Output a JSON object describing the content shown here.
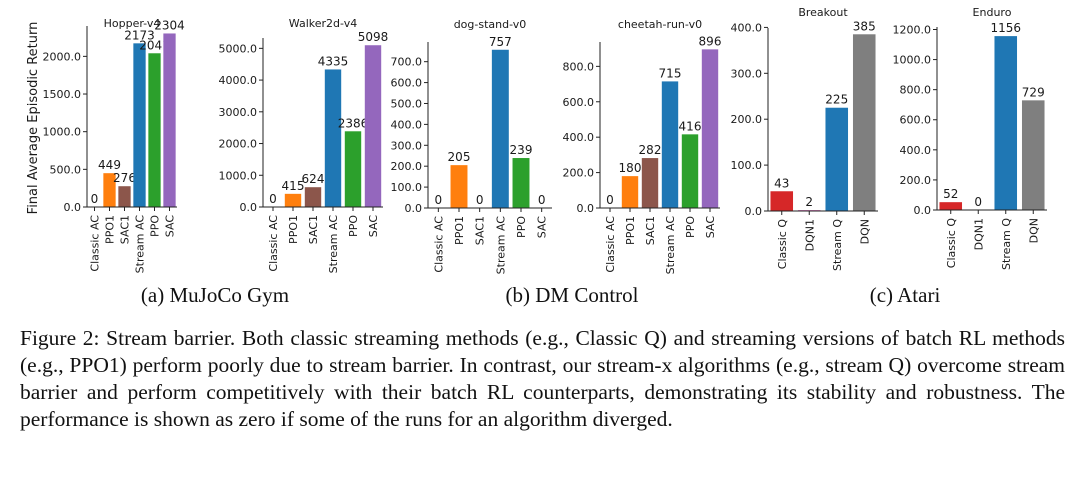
{
  "figure": {
    "ylabel": "Final Average Episodic Return",
    "panel_captions": [
      "(a) MuJoCo Gym",
      "(b) DM Control",
      "(c) Atari"
    ],
    "caption": "Figure 2: Stream barrier. Both classic streaming methods (e.g., Classic Q) and streaming versions of batch RL methods (e.g., PPO1) perform poorly due to stream barrier. In contrast, our stream-x algorithms (e.g., stream Q) overcome stream barrier and perform competitively with their batch RL counterparts, demonstrating its stability and robustness. The performance is shown as zero if some of the runs for an algorithm diverged."
  },
  "colors": {
    "Classic AC": "#1f77b4",
    "PPO1": "#ff7f0e",
    "SAC1": "#8c564b",
    "Stream AC": "#1f77b4",
    "PPO": "#2ca02c",
    "SAC": "#9467bd",
    "Classic Q": "#d62728",
    "DQN1": "#e377c2",
    "Stream Q": "#1f77b4",
    "DQN": "#7f7f7f"
  },
  "chart_data": [
    {
      "type": "bar",
      "title": "Hopper-v4",
      "categories": [
        "Classic AC",
        "PPO1",
        "SAC1",
        "Stream AC",
        "PPO",
        "SAC"
      ],
      "values": [
        0,
        449,
        276,
        2173,
        2041,
        2304
      ],
      "ylim": [
        0,
        2350
      ],
      "yticks": [
        0,
        500,
        1000,
        1500,
        2000
      ],
      "ylabel": "Final Average Episodic Return"
    },
    {
      "type": "bar",
      "title": "Walker2d-v4",
      "categories": [
        "Classic AC",
        "PPO1",
        "SAC1",
        "Stream AC",
        "PPO",
        "SAC"
      ],
      "values": [
        0,
        415,
        624,
        4335,
        2386,
        5098
      ],
      "ylim": [
        0,
        5200
      ],
      "yticks": [
        0,
        1000,
        2000,
        3000,
        4000,
        5000
      ]
    },
    {
      "type": "bar",
      "title": "dog-stand-v0",
      "categories": [
        "Classic AC",
        "PPO1",
        "SAC1",
        "Stream AC",
        "PPO",
        "SAC"
      ],
      "values": [
        0,
        205,
        0,
        757,
        239,
        0
      ],
      "ylim": [
        0,
        775
      ],
      "yticks": [
        0,
        100,
        200,
        300,
        400,
        500,
        600,
        700
      ]
    },
    {
      "type": "bar",
      "title": "cheetah-run-v0",
      "categories": [
        "Classic AC",
        "PPO1",
        "SAC1",
        "Stream AC",
        "PPO",
        "SAC"
      ],
      "values": [
        0,
        180,
        282,
        715,
        416,
        896
      ],
      "ylim": [
        0,
        915
      ],
      "yticks": [
        0,
        200,
        400,
        600,
        800
      ]
    },
    {
      "type": "bar",
      "title": "Breakout",
      "categories": [
        "Classic Q",
        "DQN1",
        "Stream Q",
        "DQN"
      ],
      "values": [
        43,
        2,
        225,
        385
      ],
      "ylim": [
        0,
        390
      ],
      "yticks": [
        0,
        100,
        200,
        300,
        400
      ]
    },
    {
      "type": "bar",
      "title": "Enduro",
      "categories": [
        "Classic Q",
        "DQN1",
        "Stream Q",
        "DQN"
      ],
      "values": [
        52,
        0,
        1156,
        729
      ],
      "ylim": [
        0,
        1190
      ],
      "yticks": [
        0,
        200,
        400,
        600,
        800,
        1000,
        1200
      ]
    }
  ]
}
